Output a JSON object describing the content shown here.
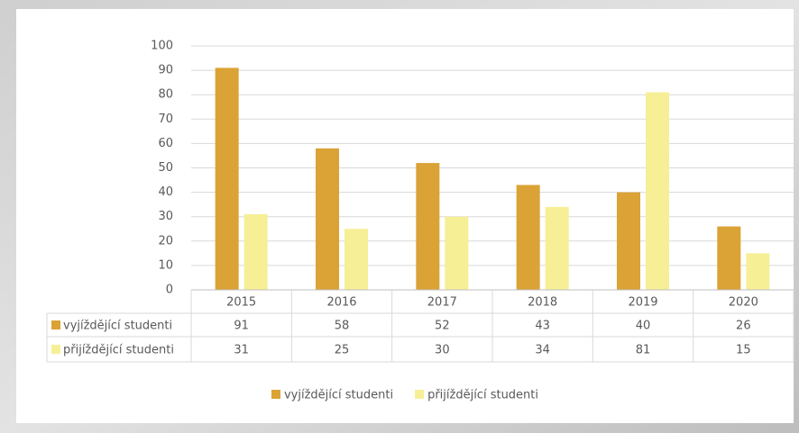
{
  "chart_data": {
    "type": "bar",
    "categories": [
      "2015",
      "2016",
      "2017",
      "2018",
      "2019",
      "2020"
    ],
    "series": [
      {
        "name": "vyjíždějící studenti",
        "color": "#dba235",
        "values": [
          91,
          58,
          52,
          43,
          40,
          26
        ]
      },
      {
        "name": "přijíždějící studenti",
        "color": "#f6ef96",
        "values": [
          31,
          25,
          30,
          34,
          81,
          15
        ]
      }
    ],
    "ylim": [
      0,
      100
    ],
    "yticks": [
      0,
      10,
      20,
      30,
      40,
      50,
      60,
      70,
      80,
      90,
      100
    ],
    "grid": true,
    "legend": "bottom",
    "data_table": true
  }
}
